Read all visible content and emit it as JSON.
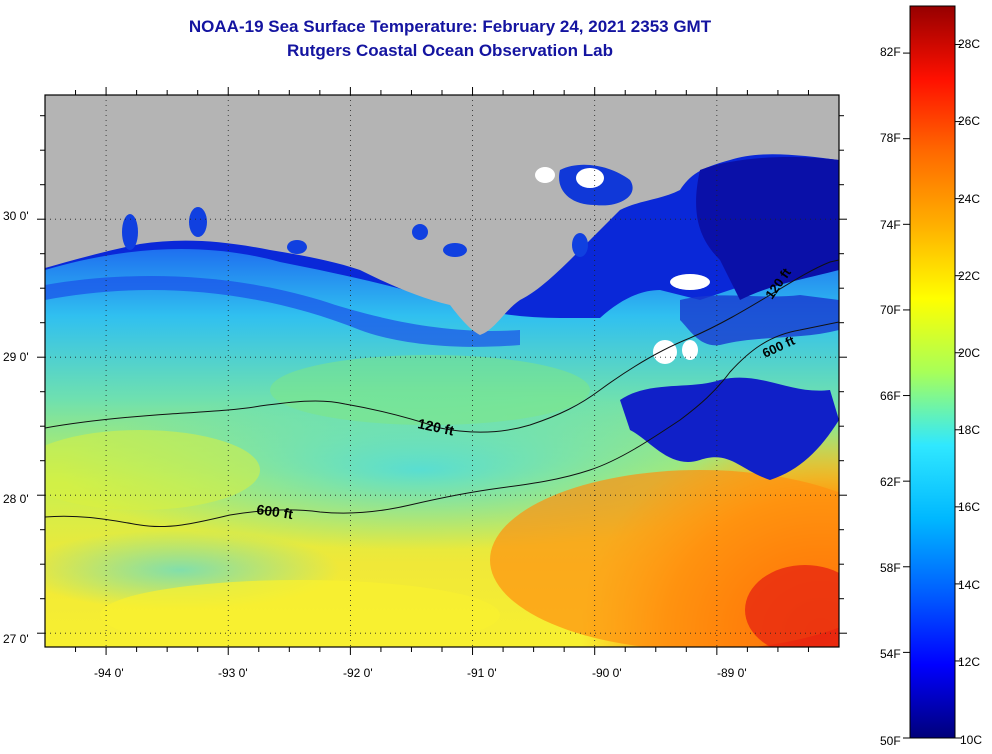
{
  "header": {
    "title": "NOAA-19 Sea Surface Temperature:  February 24, 2021 2353 GMT",
    "subtitle": "Rutgers Coastal Ocean Observation Lab"
  },
  "map": {
    "lat_labels": [
      "30 0'",
      "29 0'",
      "28 0'",
      "27 0'"
    ],
    "lon_labels": [
      "-94 0'",
      "-93 0'",
      "-92 0'",
      "-91 0'",
      "-90 0'",
      "-89 0'"
    ],
    "lat_range": [
      26.9,
      30.9
    ],
    "lon_range": [
      -94.5,
      -88.0
    ],
    "contours": [
      {
        "label": "120 ft",
        "depth_ft": 120
      },
      {
        "label": "600 ft",
        "depth_ft": 600
      },
      {
        "label": "120 ft",
        "depth_ft": 120
      },
      {
        "label": "600 ft",
        "depth_ft": 600
      }
    ],
    "colors": {
      "land": "#b4b4b4",
      "frame": "#000000",
      "grid": "#000000"
    }
  },
  "colorbar": {
    "fahrenheit_labels": [
      "82F",
      "78F",
      "74F",
      "70F",
      "66F",
      "62F",
      "58F",
      "54F",
      "50F"
    ],
    "celsius_labels": [
      "28C",
      "26C",
      "24C",
      "22C",
      "20C",
      "18C",
      "16C",
      "14C",
      "12C",
      "10C"
    ],
    "range_c": [
      10,
      29
    ],
    "gradient": [
      "#00007a",
      "#0000ff",
      "#0060ff",
      "#00b8ff",
      "#30e8ff",
      "#a8ff58",
      "#ffff00",
      "#ffb000",
      "#ff6a00",
      "#ff1000",
      "#960000"
    ]
  }
}
